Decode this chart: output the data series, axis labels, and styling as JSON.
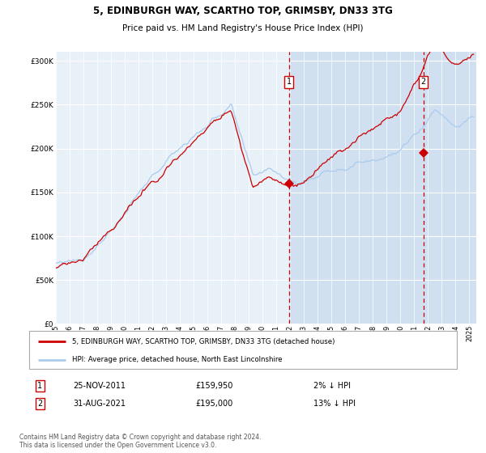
{
  "title1": "5, EDINBURGH WAY, SCARTHO TOP, GRIMSBY, DN33 3TG",
  "title2": "Price paid vs. HM Land Registry's House Price Index (HPI)",
  "legend_red": "5, EDINBURGH WAY, SCARTHO TOP, GRIMSBY, DN33 3TG (detached house)",
  "legend_blue": "HPI: Average price, detached house, North East Lincolnshire",
  "note": "Contains HM Land Registry data © Crown copyright and database right 2024.\nThis data is licensed under the Open Government Licence v3.0.",
  "sale1_date": "25-NOV-2011",
  "sale1_price": 159950,
  "sale1_note": "2% ↓ HPI",
  "sale2_date": "31-AUG-2021",
  "sale2_price": 195000,
  "sale2_note": "13% ↓ HPI",
  "ylim": [
    0,
    310000
  ],
  "yticks": [
    0,
    50000,
    100000,
    150000,
    200000,
    250000,
    300000
  ],
  "ytick_labels": [
    "£0",
    "£50K",
    "£100K",
    "£150K",
    "£200K",
    "£250K",
    "£300K"
  ],
  "bg_light": "#e8f0f8",
  "bg_shaded": "#d0e0f0",
  "grid_color": "#ffffff",
  "red_color": "#cc0000",
  "blue_color": "#aaccee",
  "sale1_year": 2011.9,
  "sale2_year": 2021.67,
  "xmin": 1995.0,
  "xmax": 2025.5
}
